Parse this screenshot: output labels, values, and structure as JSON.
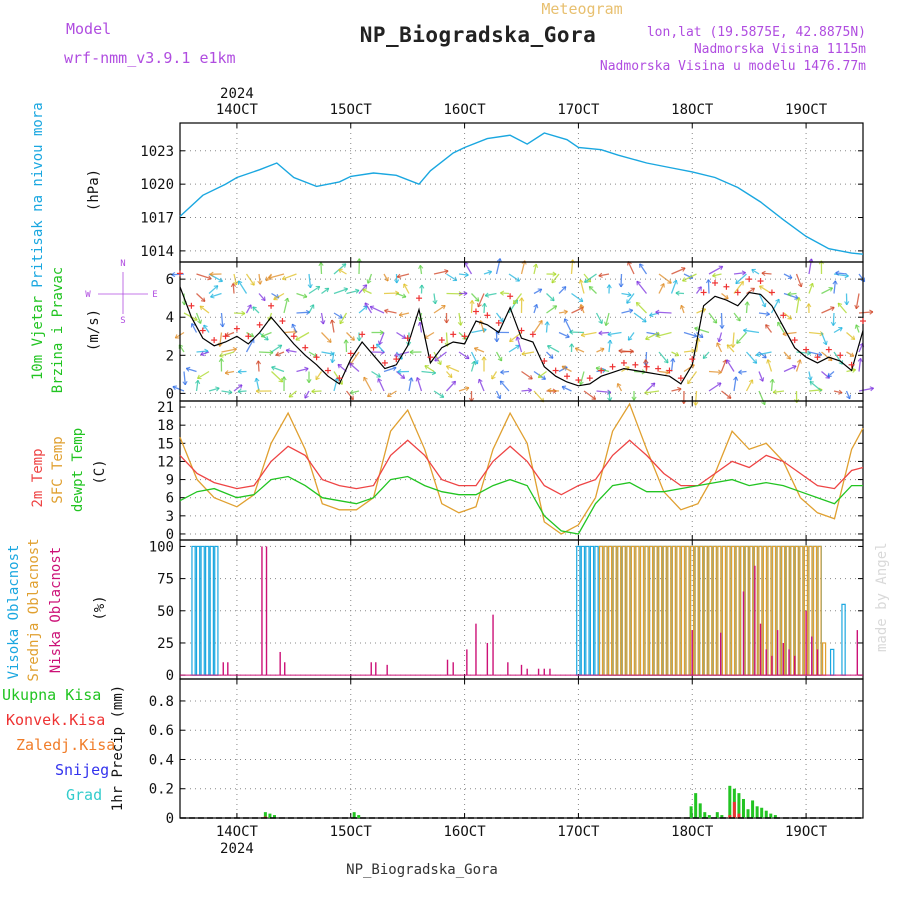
{
  "header": {
    "model_label": "Model",
    "model_name": "wrf-nmm_v3.9.1 e1km",
    "title": "NP_Biogradska_Gora",
    "meteogram_label": "Meteogram",
    "lonlat": "lon,lat (19.5875E, 42.8875N)",
    "altitude": "Nadmorska Visina 1115m",
    "model_altitude": "Nadmorska Visina u modelu 1476.77m",
    "bottom_title": "NP_Biogradska_Gora",
    "watermark": "made by Angel"
  },
  "colors": {
    "pressure": "#1aa7e0",
    "wind_speed": "#000000",
    "wind_gust": "#ee3333",
    "temp2m": "#ee4444",
    "sfc_temp": "#e0a030",
    "dewpoint": "#22c422",
    "cloud_high": "#1aa7e0",
    "cloud_mid": "#e0a030",
    "cloud_low": "#cc1177",
    "precip_total": "#22c422",
    "precip_conv": "#ee3333",
    "precip_frozen": "#f07d2a",
    "snow": "#3333ee",
    "graupel": "#33cccc",
    "label_violet": "#b04de0"
  },
  "chart_data": [
    {
      "panel": "pressure",
      "type": "line",
      "ylabel": [
        "Pritisak na nivou mora",
        "(hPa)"
      ],
      "yticks": [
        1014,
        1017,
        1020,
        1023
      ],
      "ylim": [
        1013.0,
        1025.5
      ],
      "x_unit": "day of October 2024",
      "x_range": [
        13.5,
        19.5
      ],
      "x_year_label": "2024",
      "xticks": [
        {
          "x": 14,
          "label": "14OCT"
        },
        {
          "x": 15,
          "label": "15OCT"
        },
        {
          "x": 16,
          "label": "16OCT"
        },
        {
          "x": 17,
          "label": "17OCT"
        },
        {
          "x": 18,
          "label": "18OCT"
        },
        {
          "x": 19,
          "label": "19OCT"
        }
      ],
      "x": [
        13.5,
        13.7,
        13.9,
        14.0,
        14.2,
        14.35,
        14.5,
        14.7,
        14.9,
        15.0,
        15.2,
        15.4,
        15.6,
        15.7,
        15.9,
        16.0,
        16.2,
        16.4,
        16.55,
        16.7,
        16.9,
        17.0,
        17.2,
        17.35,
        17.6,
        17.8,
        18.0,
        18.2,
        18.4,
        18.6,
        18.8,
        19.0,
        19.2,
        19.4,
        19.5
      ],
      "series": [
        {
          "values": [
            1017.1,
            1019.0,
            1020.0,
            1020.6,
            1021.3,
            1021.9,
            1020.6,
            1019.8,
            1020.2,
            1020.7,
            1021.0,
            1020.8,
            1020.0,
            1021.2,
            1022.8,
            1023.3,
            1024.1,
            1024.4,
            1023.6,
            1024.6,
            1024.0,
            1023.3,
            1023.1,
            1022.6,
            1021.9,
            1021.5,
            1021.1,
            1020.6,
            1019.7,
            1018.4,
            1016.8,
            1015.3,
            1014.2,
            1013.8,
            1013.7
          ]
        }
      ]
    },
    {
      "panel": "wind",
      "type": "line",
      "ylabel": [
        "10m Vjetar",
        "Brzina i Pravac",
        "(m/s)"
      ],
      "compass": {
        "n": "N",
        "s": "S",
        "w": "W",
        "e": "E"
      },
      "yticks": [
        0,
        2,
        4,
        6
      ],
      "ylim": [
        -0.4,
        6.9
      ],
      "x": [
        13.5,
        13.6,
        13.7,
        13.8,
        13.9,
        14.0,
        14.1,
        14.2,
        14.3,
        14.4,
        14.5,
        14.6,
        14.7,
        14.8,
        14.9,
        15.0,
        15.1,
        15.2,
        15.3,
        15.4,
        15.5,
        15.6,
        15.7,
        15.8,
        15.9,
        16.0,
        16.1,
        16.2,
        16.3,
        16.4,
        16.5,
        16.6,
        16.7,
        16.8,
        16.9,
        17.0,
        17.1,
        17.2,
        17.3,
        17.4,
        17.5,
        17.6,
        17.7,
        17.8,
        17.9,
        18.0,
        18.1,
        18.2,
        18.3,
        18.4,
        18.5,
        18.6,
        18.7,
        18.8,
        18.9,
        19.0,
        19.1,
        19.2,
        19.3,
        19.4,
        19.5
      ],
      "series": [
        {
          "name": "speed",
          "values": [
            5.6,
            4.0,
            2.9,
            2.5,
            2.7,
            3.0,
            2.6,
            3.2,
            4.0,
            3.3,
            2.6,
            2.0,
            1.5,
            0.9,
            0.5,
            1.8,
            2.7,
            2.0,
            1.3,
            1.5,
            2.5,
            4.4,
            1.6,
            2.4,
            2.7,
            2.6,
            3.8,
            3.6,
            3.2,
            4.5,
            2.9,
            2.7,
            1.4,
            0.9,
            0.6,
            0.4,
            0.5,
            0.9,
            1.1,
            1.3,
            1.2,
            1.1,
            1.0,
            0.9,
            0.5,
            1.5,
            4.6,
            5.1,
            4.9,
            4.6,
            5.3,
            5.2,
            4.6,
            3.5,
            2.4,
            1.9,
            1.6,
            1.9,
            1.7,
            1.2,
            3.3
          ]
        },
        {
          "name": "gust",
          "values": [
            6.3,
            4.6,
            3.3,
            2.8,
            3.0,
            3.4,
            3.0,
            3.6,
            4.6,
            3.8,
            3.0,
            2.4,
            1.9,
            1.2,
            0.8,
            2.1,
            3.1,
            2.4,
            1.6,
            1.8,
            2.9,
            5.0,
            1.9,
            2.8,
            3.1,
            3.0,
            4.3,
            4.1,
            3.7,
            5.1,
            3.3,
            3.1,
            1.7,
            1.2,
            0.9,
            0.7,
            0.8,
            1.2,
            1.4,
            1.6,
            1.5,
            1.4,
            1.3,
            1.2,
            0.8,
            1.8,
            5.3,
            5.8,
            5.6,
            5.3,
            6.0,
            5.9,
            5.3,
            4.1,
            2.8,
            2.3,
            1.9,
            2.3,
            2.0,
            1.5,
            3.8
          ]
        }
      ]
    },
    {
      "panel": "temperature",
      "type": "line",
      "ylabel": [
        "2m Temp",
        "SFC Temp",
        "dewpt Temp",
        "(C)"
      ],
      "yticks": [
        0,
        3,
        6,
        9,
        12,
        15,
        18,
        21
      ],
      "ylim": [
        -1.0,
        22.0
      ],
      "x": [
        13.5,
        13.65,
        13.8,
        14.0,
        14.15,
        14.3,
        14.45,
        14.6,
        14.75,
        14.9,
        15.05,
        15.2,
        15.35,
        15.5,
        15.65,
        15.8,
        15.95,
        16.1,
        16.25,
        16.4,
        16.55,
        16.7,
        16.85,
        17.0,
        17.15,
        17.3,
        17.45,
        17.6,
        17.75,
        17.9,
        18.05,
        18.2,
        18.35,
        18.5,
        18.65,
        18.8,
        18.95,
        19.1,
        19.25,
        19.4,
        19.5
      ],
      "series": [
        {
          "name": "2m Temp",
          "values": [
            13,
            10,
            8.5,
            7.5,
            8,
            12,
            14.5,
            13,
            9,
            8,
            7.5,
            8,
            13,
            15.5,
            13,
            9,
            8,
            8,
            12,
            14.5,
            12,
            8,
            6.5,
            8,
            9,
            13,
            15.5,
            13,
            10,
            8,
            8,
            10,
            12,
            11,
            13,
            12,
            10,
            8,
            7.5,
            10.5,
            11
          ]
        },
        {
          "name": "SFC Temp",
          "values": [
            16,
            9,
            6,
            4.5,
            6.5,
            15,
            20,
            14,
            5,
            4,
            4,
            6,
            17,
            20.5,
            14,
            5,
            3.5,
            4.5,
            14,
            20,
            15,
            2,
            0,
            1.5,
            6,
            17,
            21.5,
            14,
            7,
            4,
            5,
            10,
            17,
            14,
            15,
            12,
            6,
            3.5,
            2.5,
            14,
            17.5
          ]
        },
        {
          "name": "dewpt Temp",
          "values": [
            5.5,
            7,
            7.5,
            6,
            6.5,
            9,
            9.5,
            8,
            6,
            5.5,
            5,
            6,
            9,
            9.5,
            8,
            7,
            6.5,
            6.5,
            8,
            9,
            8,
            3,
            0.5,
            0,
            5,
            8,
            8.5,
            7,
            7,
            7.5,
            8,
            8.5,
            9,
            8,
            8.5,
            8,
            7,
            6,
            5,
            8,
            8
          ]
        }
      ]
    },
    {
      "panel": "cloud",
      "type": "bar",
      "ylabel": [
        "Visoka Oblacnost",
        "Srednja Oblacnost",
        "Niska Oblacnost",
        "(%)"
      ],
      "yticks": [
        0,
        25,
        50,
        75,
        100
      ],
      "ylim": [
        -3,
        105
      ],
      "series": [
        {
          "name": "high",
          "x": [
            13.62,
            13.66,
            13.7,
            13.74,
            13.78,
            13.82,
            17.0,
            17.04,
            17.08,
            17.12,
            17.16,
            17.2,
            17.24,
            17.28,
            17.32,
            17.36,
            17.4,
            17.44,
            17.48,
            17.52,
            17.56,
            17.6,
            17.64,
            17.68,
            17.72,
            17.76,
            17.8,
            17.84,
            17.88,
            17.92,
            17.96,
            18.0,
            18.04,
            18.08,
            18.12,
            18.16,
            18.2,
            18.24,
            18.28,
            18.32,
            18.36,
            18.4,
            18.44,
            18.48,
            18.52,
            18.56,
            18.6,
            18.64,
            18.68,
            18.72,
            18.76,
            18.8,
            18.84,
            18.88,
            18.92,
            18.96,
            19.0,
            19.04,
            19.08,
            19.12,
            19.23,
            19.33
          ],
          "values": [
            100,
            100,
            100,
            100,
            100,
            100,
            100,
            100,
            100,
            100,
            100,
            100,
            100,
            100,
            100,
            100,
            100,
            100,
            100,
            100,
            100,
            100,
            100,
            100,
            100,
            100,
            100,
            100,
            100,
            100,
            100,
            100,
            100,
            100,
            100,
            100,
            100,
            100,
            100,
            100,
            100,
            100,
            100,
            100,
            100,
            100,
            100,
            100,
            100,
            100,
            100,
            100,
            100,
            100,
            100,
            100,
            100,
            100,
            100,
            100,
            20,
            55
          ]
        },
        {
          "name": "mid",
          "x": [
            17.2,
            17.24,
            17.28,
            17.32,
            17.36,
            17.4,
            17.44,
            17.48,
            17.52,
            17.56,
            17.6,
            17.64,
            17.68,
            17.72,
            17.76,
            17.8,
            17.84,
            17.88,
            17.92,
            17.96,
            18.0,
            18.04,
            18.08,
            18.12,
            18.16,
            18.2,
            18.24,
            18.28,
            18.32,
            18.36,
            18.4,
            18.44,
            18.48,
            18.52,
            18.56,
            18.6,
            18.64,
            18.68,
            18.72,
            18.76,
            18.8,
            18.84,
            18.88,
            18.92,
            18.96,
            19.0,
            19.04,
            19.08,
            19.12,
            19.16
          ],
          "values": [
            100,
            100,
            100,
            100,
            100,
            100,
            100,
            100,
            100,
            100,
            100,
            100,
            100,
            100,
            100,
            100,
            100,
            100,
            100,
            100,
            100,
            100,
            100,
            100,
            100,
            100,
            100,
            100,
            100,
            100,
            100,
            100,
            100,
            100,
            100,
            100,
            100,
            100,
            100,
            100,
            100,
            100,
            100,
            100,
            100,
            100,
            100,
            100,
            100,
            25
          ]
        },
        {
          "name": "low",
          "x": [
            13.88,
            13.92,
            14.22,
            14.26,
            14.38,
            14.42,
            15.18,
            15.22,
            15.32,
            15.85,
            15.9,
            16.02,
            16.1,
            16.2,
            16.25,
            16.38,
            16.5,
            16.55,
            16.65,
            16.7,
            16.75,
            18.0,
            18.25,
            18.45,
            18.55,
            18.6,
            18.65,
            18.7,
            18.75,
            18.8,
            18.85,
            18.9,
            19.0,
            19.05,
            19.1,
            19.45
          ],
          "values": [
            10,
            10,
            100,
            100,
            18,
            10,
            10,
            10,
            8,
            12,
            10,
            20,
            40,
            25,
            47,
            10,
            8,
            5,
            5,
            5,
            5,
            35,
            33,
            65,
            85,
            40,
            20,
            15,
            35,
            25,
            20,
            15,
            50,
            30,
            20,
            35
          ]
        }
      ]
    },
    {
      "panel": "precip",
      "type": "bar",
      "ylabel": [
        "1hr Precip (mm)"
      ],
      "legend": [
        "Ukupna Kisa",
        "Konvek.Kisa",
        "Zaledj.Kisa",
        "Snijeg",
        "Grad"
      ],
      "yticks": [
        0,
        0.2,
        0.4,
        0.6,
        0.8
      ],
      "ylim": [
        0,
        0.95
      ],
      "x": [
        14.25,
        14.29,
        14.33,
        15.03,
        15.07,
        17.99,
        18.03,
        18.07,
        18.11,
        18.15,
        18.22,
        18.26,
        18.33,
        18.37,
        18.41,
        18.45,
        18.49,
        18.53,
        18.57,
        18.61,
        18.65,
        18.69,
        18.73
      ],
      "series": [
        {
          "name": "Ukupna Kisa",
          "values": [
            0.04,
            0.03,
            0.02,
            0.04,
            0.02,
            0.08,
            0.17,
            0.1,
            0.04,
            0.02,
            0.04,
            0.02,
            0.22,
            0.2,
            0.17,
            0.13,
            0.06,
            0.12,
            0.08,
            0.07,
            0.05,
            0.03,
            0.02
          ]
        },
        {
          "name": "Konvek.Kisa",
          "values": [
            0.01,
            0.0,
            0.0,
            0.0,
            0.0,
            0.0,
            0.0,
            0.0,
            0.0,
            0.0,
            0.0,
            0.0,
            0.02,
            0.11,
            0.03,
            0.0,
            0.0,
            0.0,
            0.0,
            0.0,
            0.0,
            0.0,
            0.0
          ]
        }
      ]
    }
  ]
}
